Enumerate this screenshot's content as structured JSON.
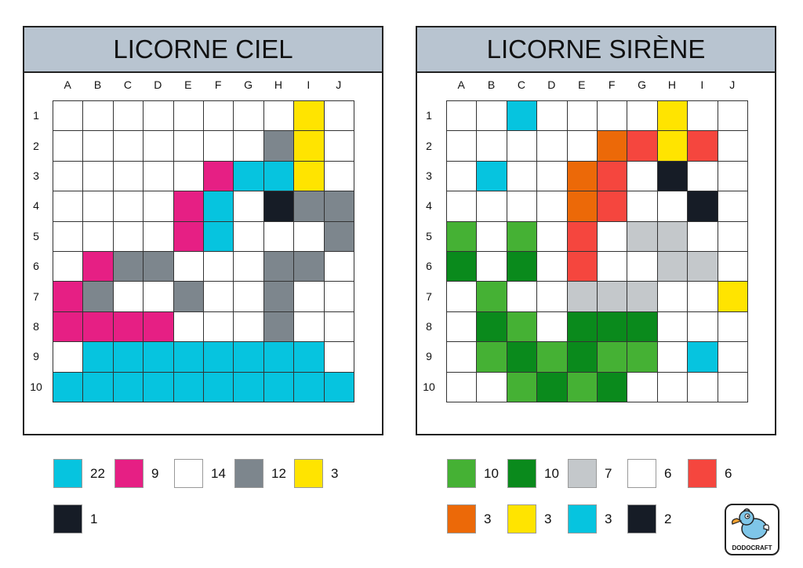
{
  "palette": {
    "C": "#06c4df",
    "P": "#e61f84",
    "W": "#ffffff",
    "G": "#7d868d",
    "Y": "#ffe400",
    "K": "#161c26",
    "L": "#45b134",
    "D": "#0a8a1c",
    "S": "#c4c8cb",
    "R": "#f5463e",
    "O": "#ec6908"
  },
  "columns": [
    "A",
    "B",
    "C",
    "D",
    "E",
    "F",
    "G",
    "H",
    "I",
    "J"
  ],
  "rows": [
    "1",
    "2",
    "3",
    "4",
    "5",
    "6",
    "7",
    "8",
    "9",
    "10"
  ],
  "puzzles": [
    {
      "title": "LICORNE CIEL",
      "grid": [
        "WWWWWWWWYW",
        "WWWWWWWGYW",
        "WWWWWPCCYW",
        "WWWWPCWKGG",
        "WWWWPCWWWG",
        "WPGGWWWGGW",
        "PGWWGWWGWW",
        "PPPPWWWGWW",
        "WCCCCCCCCW",
        "CCCCCCCCCC"
      ],
      "legend": [
        {
          "color": "C",
          "count": "22"
        },
        {
          "color": "P",
          "count": "9"
        },
        {
          "color": "W",
          "count": "14"
        },
        {
          "color": "G",
          "count": "12"
        },
        {
          "color": "Y",
          "count": "3"
        },
        {
          "color": "K",
          "count": "1"
        }
      ]
    },
    {
      "title": "LICORNE SIRÈNE",
      "grid": [
        "WWCWWWWYWW",
        "WWWWWORYRW",
        "WCWWORWKWW",
        "WWWWORWWKW",
        "LWLWRWSSWW",
        "DWDWRWWSSW",
        "WLWWSSSWWY",
        "WDLWDDDWWW",
        "WLDLDLLWCW",
        "WWLDLDWWWW"
      ],
      "legend": [
        {
          "color": "L",
          "count": "10"
        },
        {
          "color": "D",
          "count": "10"
        },
        {
          "color": "S",
          "count": "7"
        },
        {
          "color": "W",
          "count": "6"
        },
        {
          "color": "R",
          "count": "6"
        },
        {
          "color": "O",
          "count": "3"
        },
        {
          "color": "Y",
          "count": "3"
        },
        {
          "color": "C",
          "count": "3"
        },
        {
          "color": "K",
          "count": "2"
        }
      ]
    }
  ],
  "logo": {
    "label": "DODOCRAFT"
  }
}
